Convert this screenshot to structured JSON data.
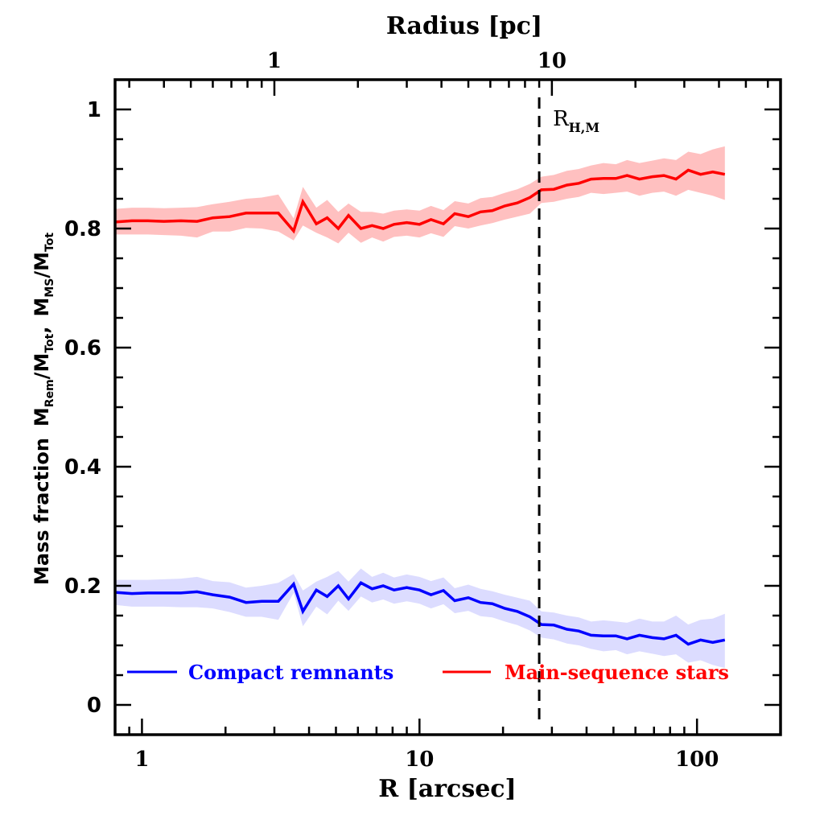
{
  "chart_data": {
    "type": "line",
    "title": "",
    "xlabel": "R [arcsec]",
    "ylabel_parts": {
      "main": "Mass fraction",
      "M1": "M",
      "sub1": "Rem",
      "slash1": "/",
      "M2": "M",
      "sub2": "Tot",
      "comma": ",",
      "M3": "M",
      "sub3": "MS",
      "slash2": "/",
      "M4": "M",
      "sub4": "Tot"
    },
    "top_xlabel": "Radius [pc]",
    "xscale": "log",
    "xlim": [
      0.8,
      200
    ],
    "ylim": [
      -0.05,
      1.05
    ],
    "x_ticks": [
      {
        "value": 1,
        "label": "1"
      },
      {
        "value": 10,
        "label": "10"
      },
      {
        "value": 100,
        "label": "100"
      }
    ],
    "top_x_ticks": [
      {
        "value": 1,
        "label": "1"
      },
      {
        "value": 10,
        "label": "10"
      }
    ],
    "top_axis_arcsec_per_pc": 3.0,
    "y_ticks": [
      {
        "value": 0,
        "label": "0"
      },
      {
        "value": 0.2,
        "label": "0.2"
      },
      {
        "value": 0.4,
        "label": "0.4"
      },
      {
        "value": 0.6,
        "label": "0.6"
      },
      {
        "value": 0.8,
        "label": "0.8"
      },
      {
        "value": 1,
        "label": "1"
      }
    ],
    "y_minor_step": 0.05,
    "annotation": {
      "x": 27,
      "label_main": "R",
      "label_sub": "H,M",
      "style": "dashed"
    },
    "legend": {
      "placement": "bottom",
      "entries": [
        {
          "name": "Compact remnants",
          "color": "#0000ff"
        },
        {
          "name": "Main-sequence stars",
          "color": "#ff0000"
        }
      ]
    },
    "x": [
      0.8,
      0.92,
      1.05,
      1.2,
      1.38,
      1.58,
      1.8,
      2.07,
      2.37,
      2.7,
      3.1,
      3.52,
      3.8,
      4.25,
      4.65,
      5.1,
      5.55,
      6.15,
      6.75,
      7.4,
      8.1,
      9.0,
      10.0,
      11.0,
      12.2,
      13.4,
      15.0,
      16.6,
      18.3,
      20.3,
      22.5,
      25.0,
      27.5,
      30.5,
      34.0,
      37.5,
      41.5,
      46.0,
      51.0,
      56.0,
      62.0,
      69.0,
      76.0,
      84.0,
      93.0,
      103.0,
      114.0,
      126.0
    ],
    "series": [
      {
        "name": "Main-sequence stars",
        "color": "#ff0000",
        "band_color": "#ffc0c0",
        "values": [
          0.811,
          0.813,
          0.813,
          0.812,
          0.813,
          0.812,
          0.818,
          0.82,
          0.826,
          0.826,
          0.826,
          0.796,
          0.845,
          0.808,
          0.818,
          0.8,
          0.822,
          0.8,
          0.805,
          0.8,
          0.807,
          0.81,
          0.807,
          0.815,
          0.808,
          0.825,
          0.82,
          0.828,
          0.83,
          0.838,
          0.843,
          0.852,
          0.865,
          0.866,
          0.873,
          0.876,
          0.883,
          0.884,
          0.884,
          0.889,
          0.883,
          0.887,
          0.889,
          0.883,
          0.898,
          0.891,
          0.895,
          0.891
        ],
        "lower": [
          0.79,
          0.79,
          0.79,
          0.789,
          0.788,
          0.785,
          0.795,
          0.795,
          0.801,
          0.8,
          0.795,
          0.78,
          0.805,
          0.793,
          0.785,
          0.775,
          0.793,
          0.776,
          0.785,
          0.778,
          0.786,
          0.788,
          0.785,
          0.792,
          0.786,
          0.804,
          0.8,
          0.805,
          0.809,
          0.815,
          0.82,
          0.825,
          0.843,
          0.845,
          0.85,
          0.853,
          0.86,
          0.858,
          0.86,
          0.862,
          0.855,
          0.86,
          0.862,
          0.855,
          0.865,
          0.86,
          0.855,
          0.848
        ],
        "upper": [
          0.833,
          0.835,
          0.835,
          0.834,
          0.835,
          0.836,
          0.841,
          0.845,
          0.85,
          0.852,
          0.857,
          0.817,
          0.87,
          0.835,
          0.848,
          0.828,
          0.842,
          0.828,
          0.828,
          0.825,
          0.83,
          0.832,
          0.83,
          0.838,
          0.831,
          0.846,
          0.842,
          0.851,
          0.853,
          0.86,
          0.866,
          0.875,
          0.887,
          0.89,
          0.897,
          0.9,
          0.906,
          0.91,
          0.908,
          0.915,
          0.91,
          0.914,
          0.918,
          0.915,
          0.929,
          0.925,
          0.933,
          0.938
        ]
      },
      {
        "name": "Compact remnants",
        "color": "#0000ff",
        "band_color": "#dcdcff",
        "values": [
          0.189,
          0.187,
          0.188,
          0.188,
          0.188,
          0.19,
          0.185,
          0.181,
          0.172,
          0.174,
          0.174,
          0.203,
          0.157,
          0.193,
          0.182,
          0.2,
          0.178,
          0.205,
          0.195,
          0.2,
          0.193,
          0.197,
          0.193,
          0.185,
          0.192,
          0.175,
          0.18,
          0.172,
          0.17,
          0.162,
          0.157,
          0.148,
          0.135,
          0.134,
          0.127,
          0.124,
          0.117,
          0.116,
          0.116,
          0.111,
          0.117,
          0.113,
          0.111,
          0.117,
          0.102,
          0.109,
          0.105,
          0.109
        ],
        "lower": [
          0.168,
          0.165,
          0.165,
          0.165,
          0.164,
          0.164,
          0.162,
          0.156,
          0.148,
          0.148,
          0.143,
          0.188,
          0.132,
          0.165,
          0.152,
          0.175,
          0.158,
          0.182,
          0.172,
          0.177,
          0.17,
          0.174,
          0.17,
          0.162,
          0.169,
          0.154,
          0.158,
          0.149,
          0.147,
          0.14,
          0.134,
          0.125,
          0.113,
          0.11,
          0.103,
          0.1,
          0.094,
          0.09,
          0.092,
          0.085,
          0.09,
          0.086,
          0.082,
          0.085,
          0.071,
          0.075,
          0.067,
          0.062
        ],
        "upper": [
          0.21,
          0.21,
          0.21,
          0.211,
          0.212,
          0.215,
          0.208,
          0.206,
          0.197,
          0.2,
          0.205,
          0.22,
          0.192,
          0.207,
          0.215,
          0.225,
          0.207,
          0.229,
          0.215,
          0.222,
          0.214,
          0.219,
          0.215,
          0.208,
          0.214,
          0.196,
          0.202,
          0.195,
          0.191,
          0.185,
          0.18,
          0.175,
          0.157,
          0.155,
          0.15,
          0.147,
          0.14,
          0.142,
          0.14,
          0.138,
          0.145,
          0.14,
          0.14,
          0.15,
          0.135,
          0.143,
          0.145,
          0.153
        ]
      }
    ]
  }
}
